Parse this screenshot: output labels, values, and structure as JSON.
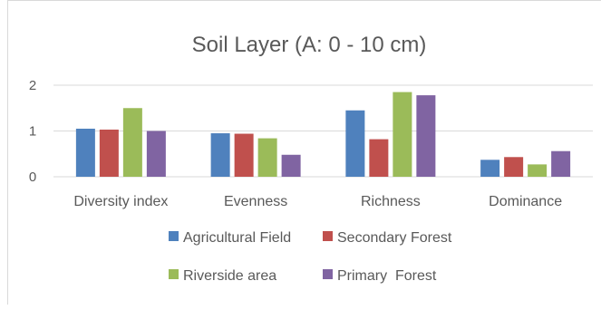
{
  "chart_data": {
    "type": "bar",
    "title": "Soil Layer (A: 0 - 10 cm)",
    "xlabel": "",
    "ylabel": "",
    "categories": [
      "Diversity index",
      "Evenness",
      "Richness",
      "Dominance"
    ],
    "y_ticks": [
      "0",
      "1",
      "2"
    ],
    "ylim": [
      0,
      2
    ],
    "grid": true,
    "legend_position": "bottom",
    "series": [
      {
        "name": "Agricultural Field",
        "color": "#4F81BD",
        "values": [
          1.05,
          0.95,
          1.45,
          0.37
        ]
      },
      {
        "name": "Secondary Forest",
        "color": "#C0504D",
        "values": [
          1.03,
          0.94,
          0.82,
          0.43
        ]
      },
      {
        "name": "Riverside area",
        "color": "#9BBB59",
        "values": [
          1.5,
          0.84,
          1.85,
          0.27
        ]
      },
      {
        "name": "Primary  Forest",
        "color": "#8064A2",
        "values": [
          1.0,
          0.48,
          1.78,
          0.56
        ]
      }
    ]
  }
}
